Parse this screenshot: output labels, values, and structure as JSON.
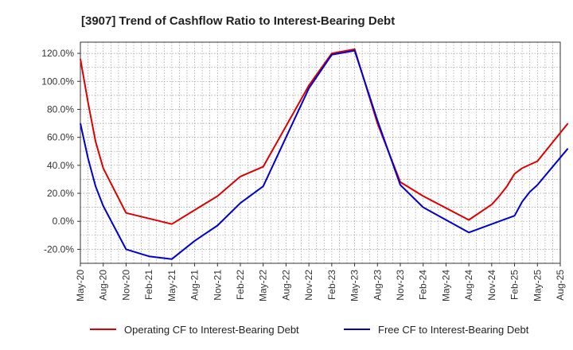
{
  "chart_data": {
    "type": "line",
    "title": "[3907]  Trend of Cashflow Ratio to Interest-Bearing Debt",
    "xlabel": "",
    "ylabel": "",
    "ylim": [
      -30,
      128
    ],
    "yticks": [
      "120.0%",
      "100.0%",
      "80.0%",
      "60.0%",
      "40.0%",
      "20.0%",
      "0.0%",
      "-20.0%"
    ],
    "ytick_values": [
      120,
      100,
      80,
      60,
      40,
      20,
      0,
      -20
    ],
    "xticks": [
      "May-20",
      "Aug-20",
      "Nov-20",
      "Feb-21",
      "May-21",
      "Aug-21",
      "Nov-21",
      "Feb-22",
      "May-22",
      "Aug-22",
      "Nov-22",
      "Feb-23",
      "May-23",
      "Aug-23",
      "Nov-23",
      "Feb-24",
      "May-24",
      "Aug-24",
      "Nov-24",
      "Feb-25",
      "May-25",
      "Aug-25"
    ],
    "grid": true,
    "legend_position": "bottom",
    "colors": {
      "operating": "#dd0000",
      "free": "#0000cc",
      "grid": "#999999",
      "axis": "#333333"
    },
    "series": [
      {
        "name": "Operating CF to Interest-Bearing Debt",
        "points": [
          [
            0,
            116
          ],
          [
            1,
            85
          ],
          [
            2,
            57
          ],
          [
            3,
            38
          ],
          [
            6,
            6
          ],
          [
            12,
            -2
          ],
          [
            18,
            18
          ],
          [
            21,
            32
          ],
          [
            24,
            39
          ],
          [
            30,
            97
          ],
          [
            33,
            120
          ],
          [
            36,
            123
          ],
          [
            39,
            70
          ],
          [
            42,
            28
          ],
          [
            45,
            18
          ],
          [
            51,
            1
          ],
          [
            54,
            12
          ],
          [
            55,
            18
          ],
          [
            56,
            25
          ],
          [
            57,
            34
          ],
          [
            58,
            38
          ],
          [
            60,
            43
          ],
          [
            64,
            70
          ]
        ]
      },
      {
        "name": "Free CF to Interest-Bearing Debt",
        "points": [
          [
            0,
            70
          ],
          [
            1,
            45
          ],
          [
            2,
            25
          ],
          [
            3,
            11
          ],
          [
            6,
            -20
          ],
          [
            9,
            -25
          ],
          [
            12,
            -27
          ],
          [
            15,
            -14
          ],
          [
            18,
            -3
          ],
          [
            21,
            13
          ],
          [
            24,
            25
          ],
          [
            30,
            95
          ],
          [
            33,
            119
          ],
          [
            36,
            122
          ],
          [
            39,
            72
          ],
          [
            42,
            26
          ],
          [
            45,
            10
          ],
          [
            51,
            -8
          ],
          [
            57,
            4
          ],
          [
            58,
            14
          ],
          [
            59,
            21
          ],
          [
            60,
            26
          ],
          [
            64,
            52
          ]
        ]
      }
    ]
  }
}
